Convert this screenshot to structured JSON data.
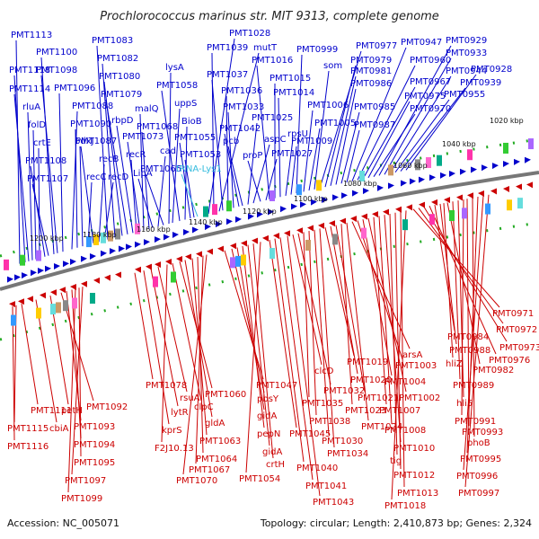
{
  "title": "Prochlorococcus marinus str. MIT 9313, complete genome",
  "footer": {
    "accession": "Accession: NC_005071",
    "summary": "Topology: circular; Length: 2,410,873 bp; Genes: 2,324"
  },
  "colors": {
    "forward": "#0000cc",
    "reverse": "#cc0000",
    "trna": "#33bbdd",
    "backbone": "#777777",
    "ticks": "#22aa22"
  },
  "kbp_ticks": [
    "1020 kbp",
    "1040 kbp",
    "1060 kbp",
    "1080 kbp",
    "1100 kbp",
    "1120 kbp",
    "1140 kbp",
    "1160 kbp",
    "1180 kbp",
    "1200 kbp"
  ],
  "forward_labels": [
    "PMT1113",
    "PMT1118",
    "PMT1114",
    "rluA",
    "folD",
    "crtE",
    "PMT1108",
    "PMT1107",
    "PMT1100",
    "PMT1098",
    "PMT1096",
    "PMT1088",
    "PMT1090",
    "pdxJ",
    "recC",
    "PMT1087",
    "recB",
    "recD",
    "PMT1083",
    "PMT1082",
    "PMT1080",
    "PMT1079",
    "rbpD",
    "recR",
    "PMT1073",
    "malQ",
    "PMT1068",
    "LipA",
    "cad",
    "PMT1065",
    "lysA",
    "uppS",
    "PMT1058",
    "BioB",
    "PMT1055",
    "PMT1053",
    "tRNA-Lys1",
    "PMT1028",
    "PMT1039",
    "mutT",
    "PMT1037",
    "PMT1036",
    "PMT1033",
    "PMT1042",
    "pcb",
    "PMT1025",
    "aspC",
    "proP",
    "PMT1027",
    "PMT1016",
    "PMT1015",
    "PMT1014",
    "rpsU",
    "PMT1009",
    "PMT0999",
    "PMT1006",
    "PMT1005",
    "som",
    "PMT0977",
    "PMT0979",
    "PMT0981",
    "PMT0986",
    "PMT0985",
    "PMT0987",
    "PMT0947",
    "PMT0960",
    "PMT0967",
    "PMT0975",
    "PMT0970",
    "PMT0929",
    "PMT0933",
    "PMT0944",
    "PMT0955",
    "PMT0939",
    "PMT0928"
  ],
  "reverse_labels": [
    "PMT1111",
    "PMT1115",
    "PMT1116",
    "cbiA",
    "petH",
    "PMT1092",
    "PMT1093",
    "PMT1094",
    "PMT1095",
    "PMT1097",
    "PMT1099",
    "PMT1078",
    "kprS",
    "lytR",
    "rsuA",
    "F2J10.13",
    "clpC",
    "PMT1060",
    "gldA",
    "PMT1063",
    "PMT1064",
    "PMT1067",
    "PMT1070",
    "PMT1047",
    "pbsY",
    "gidA",
    "pepN",
    "gidA",
    "crtH",
    "PMT1054",
    "PMT1045",
    "PMT1040",
    "PMT1041",
    "PMT1043",
    "clcD",
    "PMT1032",
    "PMT1035",
    "PMT1038",
    "PMT1030",
    "PMT1034",
    "PMT1019",
    "PMT1020",
    "PMT1021",
    "PMT1023",
    "PMT1024",
    "arsA",
    "PMT1003",
    "PMT1004",
    "PMT1002",
    "PMT1007",
    "PMT1008",
    "PMT1010",
    "tig",
    "PMT1012",
    "PMT1013",
    "PMT1018",
    "PMT0971",
    "PMT0972",
    "PMT0973",
    "PMT0976",
    "PMT0984",
    "PMT0988",
    "hliZ",
    "PMT0982",
    "PMT0989",
    "hli5",
    "PMT0991",
    "PMT0993",
    "phoB",
    "PMT0995",
    "PMT0996",
    "PMT0997"
  ]
}
